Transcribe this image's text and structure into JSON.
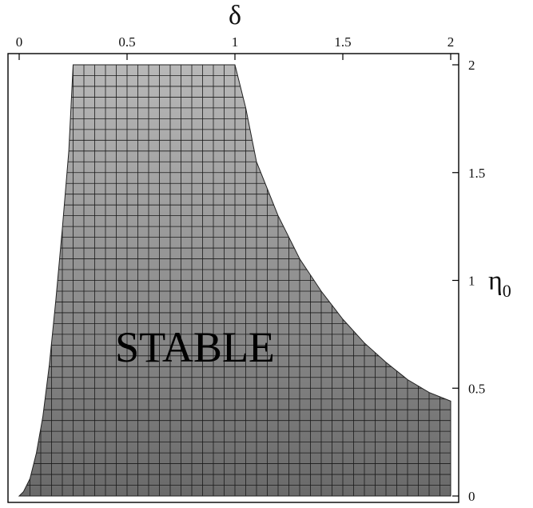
{
  "chart_data": {
    "type": "area",
    "title": "",
    "xlabel": "δ",
    "ylabel": "η",
    "ylabel_subscript": "0",
    "xlim": [
      0,
      2
    ],
    "ylim": [
      0,
      2
    ],
    "x_axis_position": "top",
    "y_axis_position": "right",
    "x_ticks": [
      {
        "value": 0,
        "label": "0"
      },
      {
        "value": 0.5,
        "label": "0.5"
      },
      {
        "value": 1,
        "label": "1"
      },
      {
        "value": 1.5,
        "label": "1.5"
      },
      {
        "value": 2,
        "label": "2"
      }
    ],
    "y_ticks": [
      {
        "value": 0,
        "label": "0"
      },
      {
        "value": 0.5,
        "label": "0.5"
      },
      {
        "value": 1,
        "label": "1"
      },
      {
        "value": 1.5,
        "label": "1.5"
      },
      {
        "value": 2,
        "label": "2"
      }
    ],
    "grid": true,
    "region_label": "STABLE",
    "region": {
      "name": "STABLE",
      "left_boundary": [
        {
          "x": 0.0,
          "y": 0.0
        },
        {
          "x": 0.02,
          "y": 0.02
        },
        {
          "x": 0.05,
          "y": 0.08
        },
        {
          "x": 0.08,
          "y": 0.2
        },
        {
          "x": 0.11,
          "y": 0.37
        },
        {
          "x": 0.14,
          "y": 0.61
        },
        {
          "x": 0.17,
          "y": 0.91
        },
        {
          "x": 0.2,
          "y": 1.24
        },
        {
          "x": 0.23,
          "y": 1.6
        },
        {
          "x": 0.25,
          "y": 2.0
        }
      ],
      "top_boundary": [
        {
          "x": 0.25,
          "y": 2.0
        },
        {
          "x": 1.0,
          "y": 2.0
        }
      ],
      "right_boundary": [
        {
          "x": 1.0,
          "y": 2.0
        },
        {
          "x": 1.05,
          "y": 1.8
        },
        {
          "x": 1.1,
          "y": 1.55
        },
        {
          "x": 1.2,
          "y": 1.3
        },
        {
          "x": 1.3,
          "y": 1.1
        },
        {
          "x": 1.4,
          "y": 0.95
        },
        {
          "x": 1.5,
          "y": 0.82
        },
        {
          "x": 1.6,
          "y": 0.71
        },
        {
          "x": 1.7,
          "y": 0.62
        },
        {
          "x": 1.8,
          "y": 0.54
        },
        {
          "x": 1.9,
          "y": 0.48
        },
        {
          "x": 2.0,
          "y": 0.44
        }
      ],
      "bottom_boundary": [
        {
          "x": 2.0,
          "y": 0.0
        },
        {
          "x": 0.0,
          "y": 0.0
        }
      ],
      "fill_top_color": "#b8b8b8",
      "fill_bottom_color": "#6a6a6a",
      "grid_color": "#1a1a1a"
    },
    "grid_step": 0.05
  }
}
